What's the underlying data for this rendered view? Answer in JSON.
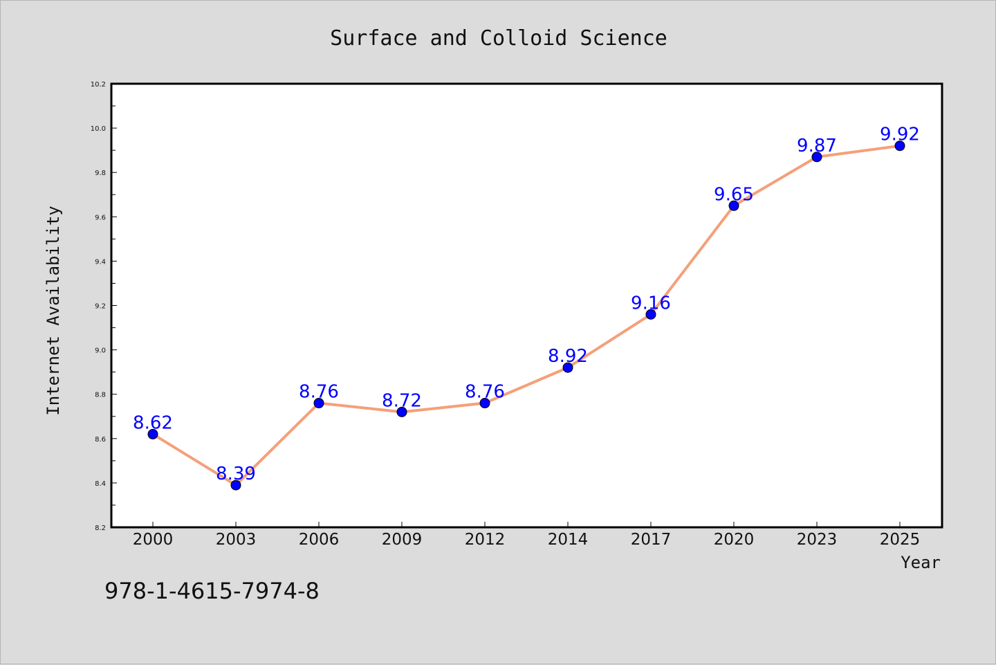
{
  "caption": "978-1-4615-7974-8",
  "chart_data": {
    "type": "line",
    "title": "Surface and Colloid Science",
    "xlabel": "Year",
    "ylabel": "Internet Availability",
    "categories": [
      "2000",
      "2003",
      "2006",
      "2009",
      "2012",
      "2014",
      "2017",
      "2020",
      "2023",
      "2025"
    ],
    "series": [
      {
        "values": [
          8.62,
          8.39,
          8.76,
          8.72,
          8.76,
          8.92,
          9.16,
          9.65,
          9.87,
          9.92
        ],
        "line_color": "#f4a07a",
        "marker_color": "#0000ff",
        "label_color": "#0000ff"
      }
    ],
    "value_labels": [
      "8.62",
      "8.39",
      "8.76",
      "8.72",
      "8.76",
      "8.92",
      "9.16",
      "9.65",
      "9.87",
      "9.92"
    ],
    "ylim": [
      8.2,
      10.2
    ],
    "yticks": [
      "8.2",
      "8.4",
      "8.6",
      "8.8",
      "9.0",
      "9.2",
      "9.4",
      "9.6",
      "9.8",
      "10.0",
      "10.2"
    ],
    "grid": false,
    "legend": "none"
  }
}
